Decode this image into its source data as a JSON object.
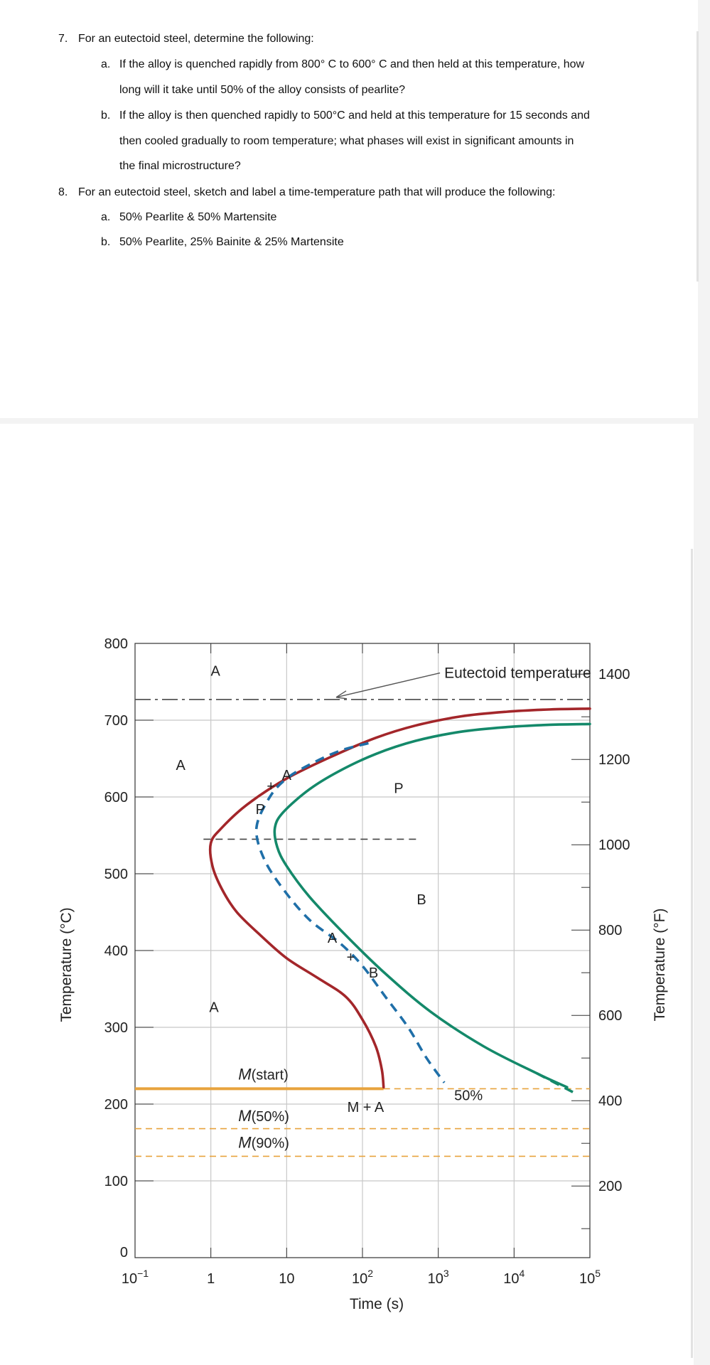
{
  "questions": [
    {
      "number": "7.",
      "text": "For an eutectoid steel, determine the following:",
      "parts": [
        {
          "label": "a.",
          "lines": [
            "If the alloy is quenched rapidly from 800° C to 600° C and then held at this temperature, how",
            "long will it take until 50% of the alloy consists of pearlite?"
          ]
        },
        {
          "label": "b.",
          "lines": [
            "If the alloy is then quenched rapidly to 500°C and held at this temperature for 15 seconds and",
            "then cooled gradually to room temperature; what phases will exist in significant amounts in",
            "the final microstructure?"
          ]
        }
      ]
    },
    {
      "number": "8.",
      "text": "For an eutectoid steel, sketch and label a time-temperature path that will produce the following:",
      "parts": [
        {
          "label": "a.",
          "lines": [
            "50% Pearlite & 50% Martensite"
          ]
        },
        {
          "label": "b.",
          "lines": [
            "50% Pearlite, 25% Bainite & 25% Martensite"
          ]
        }
      ]
    }
  ],
  "chart_data": {
    "type": "line",
    "title": "",
    "xlabel": "Time (s)",
    "ylabel": "Temperature (°C)",
    "y2label": "Temperature (°F)",
    "x_scale": "log",
    "xlim": [
      0.1,
      100000
    ],
    "ylim": [
      0,
      800
    ],
    "x_ticks": [
      {
        "base": "10",
        "exp": "−1"
      },
      {
        "base": "1",
        "exp": ""
      },
      {
        "base": "10",
        "exp": ""
      },
      {
        "base": "10",
        "exp": "2"
      },
      {
        "base": "10",
        "exp": "3"
      },
      {
        "base": "10",
        "exp": "4"
      },
      {
        "base": "10",
        "exp": "5"
      }
    ],
    "y_ticks": [
      "0",
      "100",
      "200",
      "300",
      "400",
      "500",
      "600",
      "700",
      "800"
    ],
    "y2_ticks": [
      "200",
      "400",
      "600",
      "800",
      "1000",
      "1200",
      "1400"
    ],
    "grid": true,
    "colors": {
      "start": "#a3262a",
      "fifty": "#1f6fa8",
      "finish": "#14896a",
      "martensite": "#e8a33d",
      "grid": "#c8c8c8"
    },
    "reference_lines": [
      {
        "name": "Eutectoid temperature",
        "y": 727,
        "style": "dash-dot"
      },
      {
        "name": "M(start)",
        "y": 220,
        "style": "solid"
      },
      {
        "name": "M(50%)",
        "y": 168,
        "style": "dashed"
      },
      {
        "name": "M(90%)",
        "y": 132,
        "style": "dashed"
      }
    ],
    "series": [
      {
        "key": "start",
        "style": "solid",
        "points": [
          [
            100000,
            715
          ],
          [
            30000,
            714
          ],
          [
            8000,
            711
          ],
          [
            2000,
            705
          ],
          [
            500,
            693
          ],
          [
            150,
            677
          ],
          [
            40,
            653
          ],
          [
            10,
            624
          ],
          [
            3,
            590
          ],
          [
            1.4,
            560
          ],
          [
            1,
            540
          ],
          [
            1.05,
            510
          ],
          [
            1.4,
            480
          ],
          [
            2.2,
            450
          ],
          [
            4.5,
            420
          ],
          [
            10,
            390
          ],
          [
            25,
            365
          ],
          [
            60,
            340
          ],
          [
            100,
            310
          ],
          [
            150,
            275
          ],
          [
            180,
            245
          ],
          [
            190,
            222
          ]
        ]
      },
      {
        "key": "fifty",
        "style": "dashed",
        "points": [
          [
            120,
            670
          ],
          [
            50,
            660
          ],
          [
            20,
            642
          ],
          [
            10,
            624
          ],
          [
            6,
            600
          ],
          [
            4,
            560
          ],
          [
            5,
            520
          ],
          [
            9,
            480
          ],
          [
            20,
            440
          ],
          [
            50,
            410
          ],
          [
            100,
            380
          ],
          [
            200,
            340
          ],
          [
            400,
            300
          ],
          [
            700,
            260
          ],
          [
            1200,
            228
          ]
        ]
      },
      {
        "key": "finish",
        "style": "solid",
        "points": [
          [
            100000,
            695
          ],
          [
            30000,
            694
          ],
          [
            8000,
            691
          ],
          [
            2000,
            685
          ],
          [
            500,
            673
          ],
          [
            150,
            656
          ],
          [
            50,
            634
          ],
          [
            20,
            610
          ],
          [
            9,
            580
          ],
          [
            7,
            560
          ],
          [
            7.5,
            535
          ],
          [
            10,
            510
          ],
          [
            20,
            470
          ],
          [
            60,
            420
          ],
          [
            200,
            370
          ],
          [
            800,
            320
          ],
          [
            4000,
            275
          ],
          [
            20000,
            240
          ],
          [
            50000,
            222
          ]
        ]
      },
      {
        "key": "finish-ext",
        "style": "dashed",
        "points": [
          [
            20000,
            240
          ],
          [
            70000,
            212
          ]
        ]
      }
    ],
    "annotations": [
      {
        "text": "A",
        "x": 1.15,
        "y": 758
      },
      {
        "text": "A",
        "x": 0.4,
        "y": 635
      },
      {
        "text": "A",
        "x": 1.1,
        "y": 320
      },
      {
        "text": "A",
        "x": 10,
        "y": 622
      },
      {
        "text": "+",
        "x": 6.2,
        "y": 608
      },
      {
        "text": "P",
        "x": 4.5,
        "y": 578
      },
      {
        "text": "P",
        "x": 300,
        "y": 605
      },
      {
        "text": "B",
        "x": 600,
        "y": 460
      },
      {
        "text": "A",
        "x": 40,
        "y": 410
      },
      {
        "text": "+",
        "x": 70,
        "y": 385
      },
      {
        "text": "B",
        "x": 140,
        "y": 365
      },
      {
        "text": "M(start)",
        "x": 2.3,
        "y": 232
      },
      {
        "text": "M(50%)",
        "x": 2.3,
        "y": 178
      },
      {
        "text": "M(90%)",
        "x": 2.3,
        "y": 143
      },
      {
        "text": "M + A",
        "x": 110,
        "y": 190
      },
      {
        "text": "50%",
        "x": 2500,
        "y": 205
      },
      {
        "text": "Eutectoid temperature",
        "x": 1200,
        "y": 755
      }
    ],
    "phase_separator": {
      "y": 545,
      "x_from": 0.8,
      "x_to": 550
    }
  }
}
